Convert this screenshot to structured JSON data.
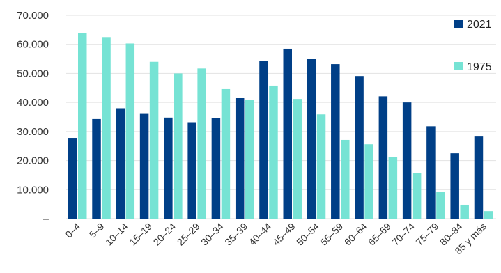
{
  "chart_data": {
    "type": "bar",
    "title": "",
    "xlabel": "",
    "ylabel": "",
    "ylim": [
      0,
      70000
    ],
    "yticks": [
      {
        "value": 0,
        "label": "–"
      },
      {
        "value": 10000,
        "label": "10.000"
      },
      {
        "value": 20000,
        "label": "20.000"
      },
      {
        "value": 30000,
        "label": "30.000"
      },
      {
        "value": 40000,
        "label": "40.000"
      },
      {
        "value": 50000,
        "label": "50.000"
      },
      {
        "value": 60000,
        "label": "60.000"
      },
      {
        "value": 70000,
        "label": "70.000"
      }
    ],
    "grid": true,
    "legend_position": "right",
    "categories": [
      "0–4",
      "5–9",
      "10–14",
      "15–19",
      "20–24",
      "25–29",
      "30–34",
      "35–39",
      "40–44",
      "45–49",
      "50–54",
      "55–59",
      "60–64",
      "65–69",
      "70–74",
      "75–79",
      "80–84",
      "85 y más"
    ],
    "series": [
      {
        "name": "2021",
        "color": "#003f87",
        "values": [
          27800,
          34300,
          38000,
          36300,
          34800,
          33200,
          34700,
          41600,
          54400,
          58500,
          55100,
          53200,
          49100,
          42100,
          40000,
          31800,
          22500,
          28500
        ]
      },
      {
        "name": "1975",
        "color": "#76e3d4",
        "values": [
          63800,
          62500,
          60300,
          54000,
          50000,
          51700,
          44600,
          40800,
          45800,
          41200,
          35900,
          27100,
          25600,
          21300,
          15800,
          9200,
          4800,
          2600
        ]
      }
    ]
  }
}
